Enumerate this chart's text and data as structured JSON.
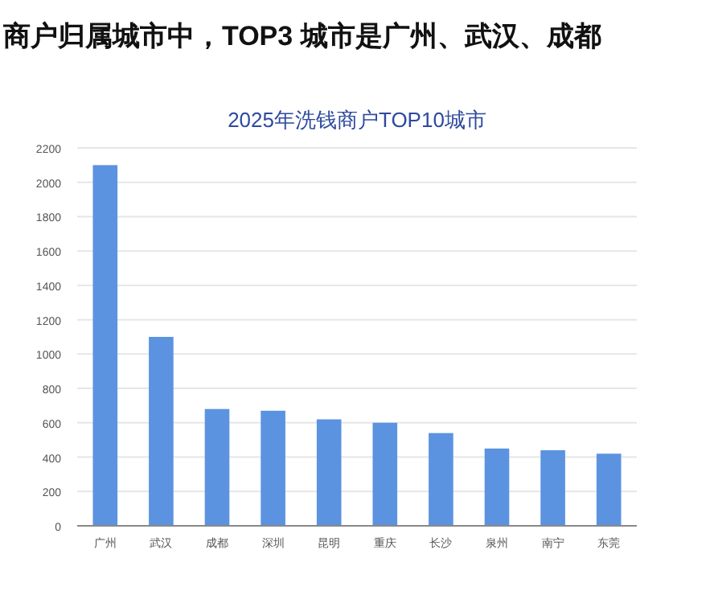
{
  "chart_data": {
    "type": "bar",
    "title": "2025年洗钱商户TOP10城市",
    "subtitle": "商户归属城市中，TOP3 城市是广州、武汉、成都",
    "categories": [
      "广州",
      "武汉",
      "成都",
      "深圳",
      "昆明",
      "重庆",
      "长沙",
      "泉州",
      "南宁",
      "东莞"
    ],
    "values": [
      2100,
      1100,
      680,
      670,
      620,
      600,
      540,
      450,
      440,
      420
    ],
    "color": "#5b93e0",
    "ylim": [
      0,
      2200
    ],
    "yticks": [
      0,
      200,
      400,
      600,
      800,
      1000,
      1200,
      1400,
      1600,
      1800,
      2000,
      2200
    ],
    "grid": "y"
  }
}
